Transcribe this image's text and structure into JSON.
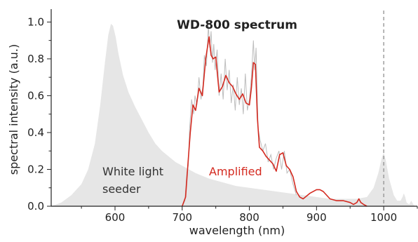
{
  "chart_data": {
    "type": "area",
    "title": "WD-800 spectrum",
    "xlabel": "wavelength (nm)",
    "ylabel": "spectral intensity (a.u.)",
    "xlim": [
      505,
      1050
    ],
    "ylim": [
      0,
      1.07
    ],
    "x_ticks": [
      600,
      700,
      800,
      900,
      1000
    ],
    "y_ticks": [
      0.0,
      0.2,
      0.4,
      0.6,
      0.8,
      1.0
    ],
    "grid": false,
    "colors": {
      "seeder": "#e6e6e6",
      "amplified": "#d42a20",
      "raw": "#bdbdbd",
      "reference": "#888888"
    },
    "annotations": [
      {
        "id": "seeder",
        "lines": [
          "White light",
          "seeder"
        ],
        "color": "#333333"
      },
      {
        "id": "amplified",
        "lines": [
          "Amplified"
        ],
        "color": "#d42a20"
      }
    ],
    "reference_line_x": 1000,
    "series": [
      {
        "id": "seeder",
        "style": "filled-area",
        "x": [
          505,
          520,
          535,
          550,
          560,
          570,
          578,
          585,
          590,
          594,
          597,
          601,
          605,
          612,
          620,
          630,
          640,
          650,
          660,
          670,
          680,
          690,
          700,
          710,
          720,
          740,
          760,
          780,
          800,
          820,
          840,
          860,
          880,
          900,
          920,
          940,
          960,
          975,
          985,
          992,
          997,
          1000,
          1003,
          1008,
          1015,
          1020,
          1025,
          1028,
          1030,
          1032,
          1034,
          1038,
          1041,
          1044,
          1047,
          1050
        ],
        "y": [
          0.0,
          0.02,
          0.06,
          0.12,
          0.2,
          0.34,
          0.55,
          0.78,
          0.93,
          0.99,
          0.98,
          0.92,
          0.83,
          0.71,
          0.62,
          0.54,
          0.47,
          0.4,
          0.34,
          0.3,
          0.27,
          0.24,
          0.22,
          0.2,
          0.18,
          0.15,
          0.13,
          0.11,
          0.1,
          0.09,
          0.08,
          0.07,
          0.06,
          0.05,
          0.04,
          0.04,
          0.04,
          0.05,
          0.1,
          0.18,
          0.26,
          0.29,
          0.25,
          0.15,
          0.06,
          0.03,
          0.03,
          0.05,
          0.07,
          0.05,
          0.02,
          0.01,
          0.03,
          0.01,
          0.0,
          0.0
        ]
      },
      {
        "id": "amplified",
        "style": "line",
        "x": [
          700,
          705,
          708,
          712,
          716,
          720,
          725,
          730,
          735,
          740,
          743,
          746,
          750,
          755,
          760,
          765,
          770,
          775,
          780,
          785,
          790,
          795,
          800,
          803,
          806,
          809,
          812,
          815,
          820,
          825,
          830,
          835,
          840,
          845,
          850,
          855,
          860,
          865,
          870,
          875,
          880,
          890,
          900,
          905,
          910,
          920,
          930,
          940,
          950,
          955,
          960,
          963,
          966,
          970,
          975
        ],
        "y": [
          0.0,
          0.05,
          0.2,
          0.4,
          0.55,
          0.52,
          0.64,
          0.6,
          0.8,
          0.92,
          0.82,
          0.8,
          0.81,
          0.62,
          0.65,
          0.71,
          0.67,
          0.65,
          0.61,
          0.58,
          0.61,
          0.56,
          0.55,
          0.64,
          0.78,
          0.77,
          0.48,
          0.32,
          0.3,
          0.27,
          0.25,
          0.23,
          0.19,
          0.28,
          0.29,
          0.22,
          0.2,
          0.16,
          0.08,
          0.05,
          0.04,
          0.07,
          0.09,
          0.09,
          0.08,
          0.04,
          0.03,
          0.03,
          0.02,
          0.01,
          0.02,
          0.04,
          0.02,
          0.01,
          0.0
        ]
      },
      {
        "id": "raw",
        "style": "thin-line",
        "x": [
          700,
          704,
          707,
          709,
          711,
          714,
          717,
          719,
          722,
          725,
          728,
          731,
          733,
          736,
          739,
          741,
          743,
          745,
          747,
          749,
          752,
          755,
          758,
          761,
          764,
          767,
          770,
          773,
          776,
          779,
          782,
          785,
          788,
          791,
          794,
          797,
          800,
          803,
          806,
          808,
          810,
          813,
          816,
          820,
          824,
          828,
          832,
          836,
          840,
          844,
          848,
          852,
          856,
          860,
          865,
          870
        ],
        "y": [
          0.0,
          0.03,
          0.18,
          0.22,
          0.42,
          0.58,
          0.5,
          0.6,
          0.55,
          0.7,
          0.58,
          0.66,
          0.82,
          0.76,
          0.98,
          0.86,
          0.95,
          0.78,
          0.88,
          0.74,
          0.85,
          0.6,
          0.72,
          0.58,
          0.8,
          0.63,
          0.74,
          0.56,
          0.66,
          0.52,
          0.7,
          0.55,
          0.64,
          0.5,
          0.72,
          0.52,
          0.58,
          0.7,
          0.9,
          0.74,
          0.86,
          0.42,
          0.36,
          0.3,
          0.34,
          0.24,
          0.28,
          0.2,
          0.26,
          0.3,
          0.2,
          0.3,
          0.18,
          0.2,
          0.12,
          0.06
        ]
      }
    ]
  }
}
